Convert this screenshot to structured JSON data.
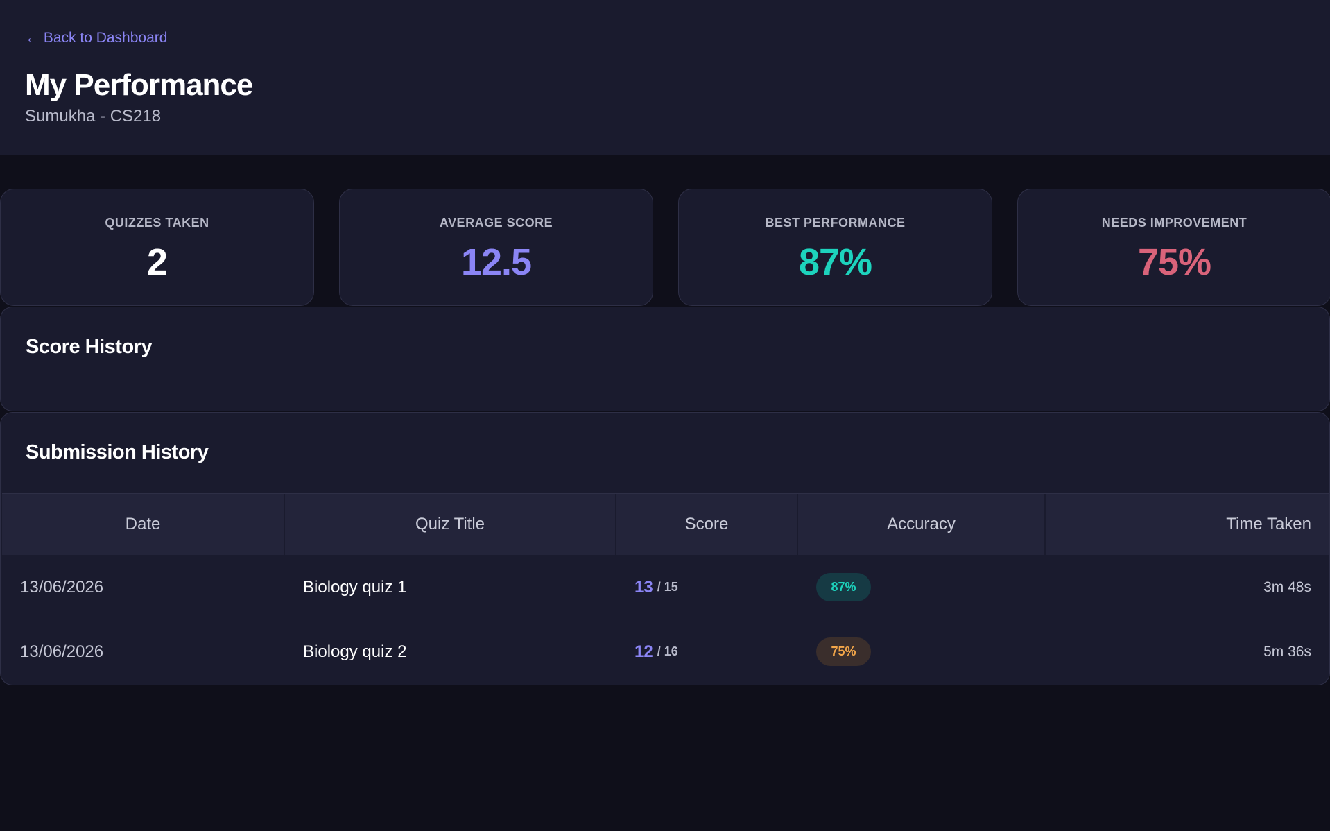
{
  "header": {
    "back_label": "← Back to Dashboard",
    "title": "My Performance",
    "subtitle": "Sumukha - CS218"
  },
  "stats": [
    {
      "label": "QUIZZES TAKEN",
      "value": "2",
      "color": "#ffffff"
    },
    {
      "label": "AVERAGE SCORE",
      "value": "12.5",
      "color": "#8b85f5"
    },
    {
      "label": "BEST PERFORMANCE",
      "value": "87%",
      "color": "#1dd3bd"
    },
    {
      "label": "NEEDS IMPROVEMENT",
      "value": "75%",
      "color": "#d9637a"
    }
  ],
  "score_history": {
    "title": "Score History"
  },
  "submissions": {
    "title": "Submission History",
    "columns": [
      "Date",
      "Quiz Title",
      "Score",
      "Accuracy",
      "Time Taken"
    ],
    "rows": [
      {
        "date": "13/06/2026",
        "quiz": "Biology quiz 1",
        "score": "13",
        "total": "/ 15",
        "accuracy": "87%",
        "accuracy_status": "good",
        "time": "3m 48s"
      },
      {
        "date": "13/06/2026",
        "quiz": "Biology quiz 2",
        "score": "12",
        "total": "/ 16",
        "accuracy": "75%",
        "accuracy_status": "warn",
        "time": "5m 36s"
      }
    ]
  },
  "colors": {
    "accent": "#8b85f5",
    "success": "#1dd3bd",
    "danger": "#d9637a",
    "warning": "#f4a74a",
    "background": "#0f0f1a",
    "surface": "#1a1b2e"
  }
}
